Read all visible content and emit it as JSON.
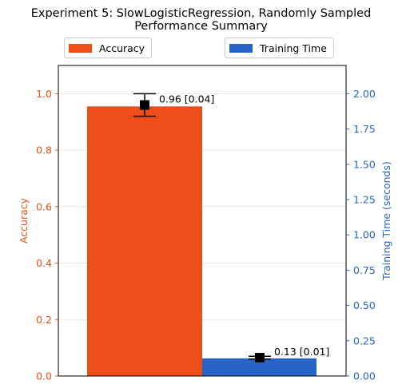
{
  "colors": {
    "accuracy": "#EE4F1A",
    "training_time": "#2864C8",
    "marker": "#000000",
    "grid": "#e0e0e0"
  },
  "chart_data": {
    "type": "bar",
    "title_line1": "Experiment 5: SlowLogisticRegression, Randomly Sampled",
    "title_line2": "Performance Summary",
    "grid": true,
    "legend_placement": "top",
    "left_axis": {
      "label": "Accuracy",
      "ylim": [
        0,
        1.1
      ],
      "ticks": [
        0.0,
        0.2,
        0.4,
        0.6,
        0.8,
        1.0
      ],
      "tick_labels": [
        "0.0",
        "0.2",
        "0.4",
        "0.6",
        "0.8",
        "1.0"
      ]
    },
    "right_axis": {
      "label": "Training Time (seconds)",
      "ylim": [
        0,
        2.2
      ],
      "ticks": [
        0.0,
        0.25,
        0.5,
        0.75,
        1.0,
        1.25,
        1.5,
        1.75,
        2.0
      ],
      "tick_labels": [
        "0.00",
        "0.25",
        "0.50",
        "0.75",
        "1.00",
        "1.25",
        "1.50",
        "1.75",
        "2.00"
      ]
    },
    "series": [
      {
        "name": "Accuracy",
        "axis": "left",
        "bar_value": 0.955,
        "mean": 0.96,
        "error": 0.04,
        "annotation": "0.96 [0.04]"
      },
      {
        "name": "Training Time",
        "axis": "right",
        "bar_value": 0.125,
        "mean": 0.13,
        "error": 0.01,
        "annotation": "0.13 [0.01]"
      }
    ]
  }
}
